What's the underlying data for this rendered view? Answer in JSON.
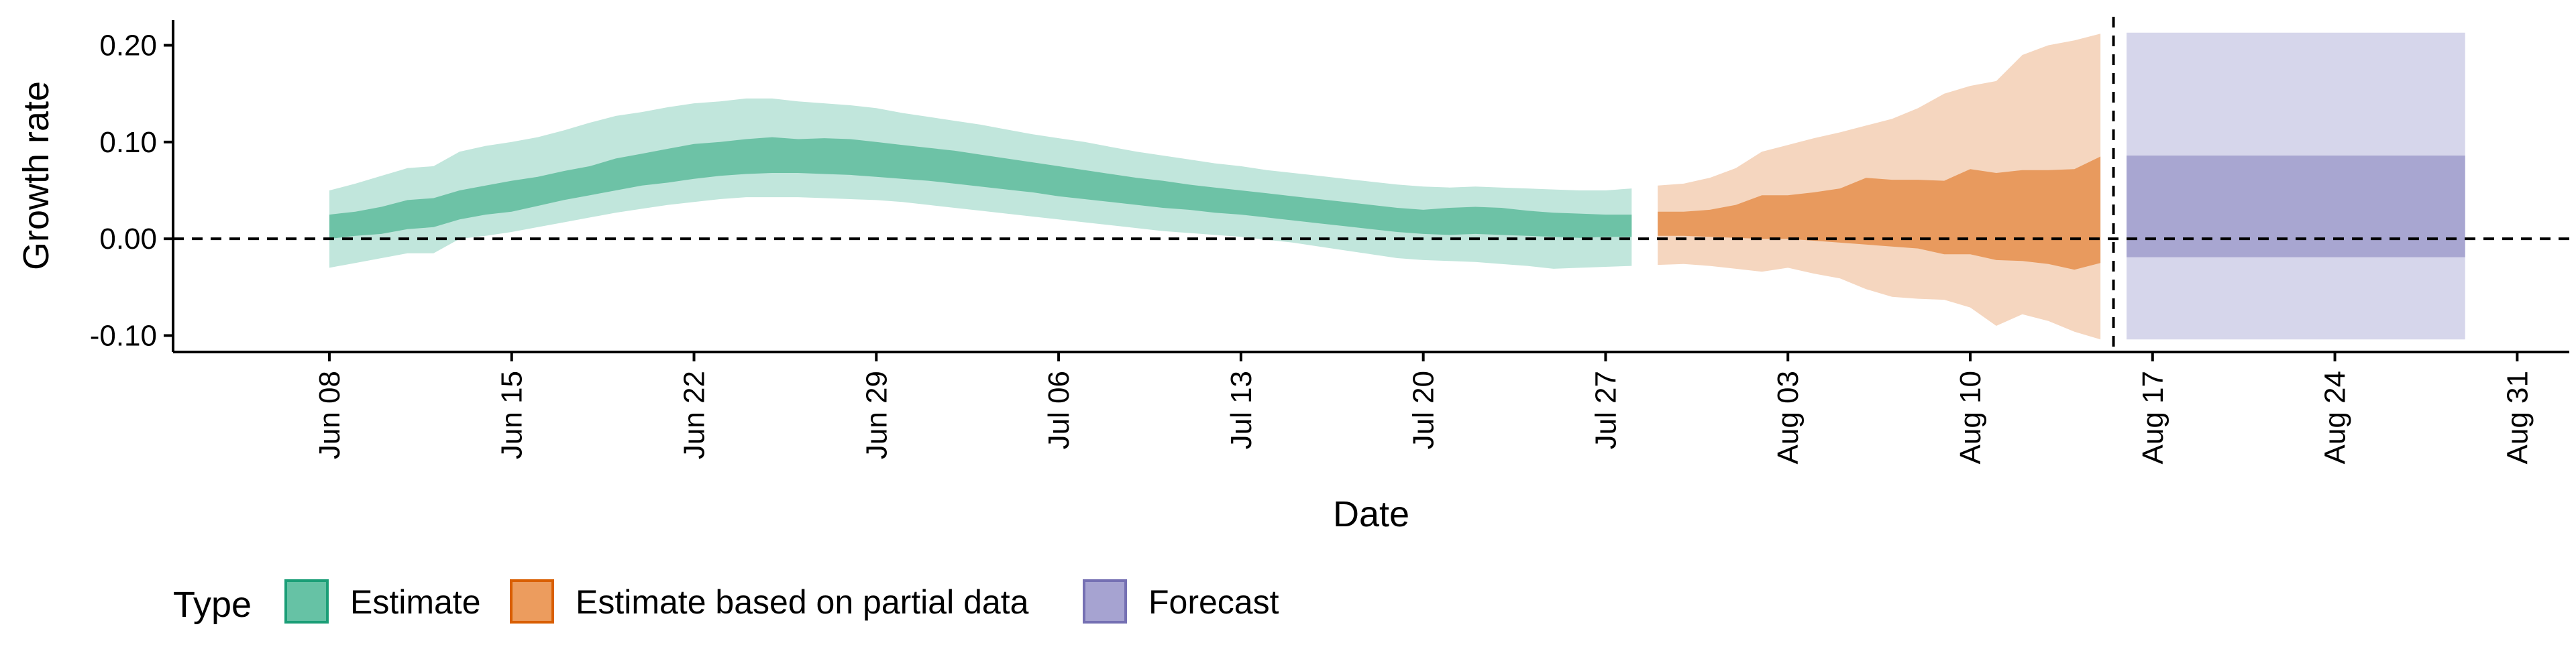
{
  "chart_data": {
    "type": "area",
    "xlabel": "Date",
    "ylabel": "Growth rate",
    "y_ticks": [
      {
        "value": 0.2,
        "label": "0.20"
      },
      {
        "value": 0.1,
        "label": "0.10"
      },
      {
        "value": 0.0,
        "label": "0.00"
      },
      {
        "value": -0.1,
        "label": "-0.10"
      }
    ],
    "ylim": [
      -0.117,
      0.226
    ],
    "xlim": [
      "2020-06-02",
      "2020-09-02"
    ],
    "x_ticks": [
      {
        "date": "2020-06-08",
        "label": "Jun 08"
      },
      {
        "date": "2020-06-15",
        "label": "Jun 15"
      },
      {
        "date": "2020-06-22",
        "label": "Jun 22"
      },
      {
        "date": "2020-06-29",
        "label": "Jun 29"
      },
      {
        "date": "2020-07-06",
        "label": "Jul 06"
      },
      {
        "date": "2020-07-13",
        "label": "Jul 13"
      },
      {
        "date": "2020-07-20",
        "label": "Jul 20"
      },
      {
        "date": "2020-07-27",
        "label": "Jul 27"
      },
      {
        "date": "2020-08-03",
        "label": "Aug 03"
      },
      {
        "date": "2020-08-10",
        "label": "Aug 10"
      },
      {
        "date": "2020-08-17",
        "label": "Aug 17"
      },
      {
        "date": "2020-08-24",
        "label": "Aug 24"
      },
      {
        "date": "2020-08-31",
        "label": "Aug 31"
      }
    ],
    "reference_lines": [
      {
        "axis": "y",
        "value": 0.0,
        "style": "dashed"
      },
      {
        "axis": "x",
        "value": "2020-08-15",
        "style": "dashed"
      }
    ],
    "legend": {
      "title": "Type",
      "placement": "bottom-left",
      "items": [
        {
          "label": "Estimate",
          "fill": "#66c2a5",
          "stroke": "#1b9e77"
        },
        {
          "label": "Estimate based on partial data",
          "fill": "#ec9c5e",
          "stroke": "#d95f02"
        },
        {
          "label": "Forecast",
          "fill": "#a6a3d1",
          "stroke": "#7570b3"
        }
      ]
    },
    "series": [
      {
        "name": "Estimate",
        "color_outer": "#c1e6dc",
        "color_inner": "#6dc2a6",
        "points": [
          {
            "x": "2020-06-08",
            "lo90": -0.03,
            "lo50": 0.0,
            "hi50": 0.025,
            "hi90": 0.05
          },
          {
            "x": "2020-06-09",
            "lo90": -0.025,
            "lo50": 0.003,
            "hi50": 0.028,
            "hi90": 0.057
          },
          {
            "x": "2020-06-10",
            "lo90": -0.02,
            "lo50": 0.005,
            "hi50": 0.033,
            "hi90": 0.065
          },
          {
            "x": "2020-06-11",
            "lo90": -0.015,
            "lo50": 0.01,
            "hi50": 0.04,
            "hi90": 0.073
          },
          {
            "x": "2020-06-12",
            "lo90": -0.015,
            "lo50": 0.012,
            "hi50": 0.042,
            "hi90": 0.075
          },
          {
            "x": "2020-06-13",
            "lo90": 0.0,
            "lo50": 0.02,
            "hi50": 0.05,
            "hi90": 0.09
          },
          {
            "x": "2020-06-14",
            "lo90": 0.003,
            "lo50": 0.025,
            "hi50": 0.055,
            "hi90": 0.096
          },
          {
            "x": "2020-06-15",
            "lo90": 0.007,
            "lo50": 0.028,
            "hi50": 0.06,
            "hi90": 0.1
          },
          {
            "x": "2020-06-16",
            "lo90": 0.012,
            "lo50": 0.034,
            "hi50": 0.064,
            "hi90": 0.105
          },
          {
            "x": "2020-06-17",
            "lo90": 0.017,
            "lo50": 0.04,
            "hi50": 0.07,
            "hi90": 0.112
          },
          {
            "x": "2020-06-18",
            "lo90": 0.022,
            "lo50": 0.045,
            "hi50": 0.075,
            "hi90": 0.12
          },
          {
            "x": "2020-06-19",
            "lo90": 0.027,
            "lo50": 0.05,
            "hi50": 0.083,
            "hi90": 0.127
          },
          {
            "x": "2020-06-20",
            "lo90": 0.031,
            "lo50": 0.055,
            "hi50": 0.088,
            "hi90": 0.131
          },
          {
            "x": "2020-06-21",
            "lo90": 0.035,
            "lo50": 0.058,
            "hi50": 0.093,
            "hi90": 0.136
          },
          {
            "x": "2020-06-22",
            "lo90": 0.038,
            "lo50": 0.062,
            "hi50": 0.098,
            "hi90": 0.14
          },
          {
            "x": "2020-06-23",
            "lo90": 0.041,
            "lo50": 0.065,
            "hi50": 0.1,
            "hi90": 0.142
          },
          {
            "x": "2020-06-24",
            "lo90": 0.043,
            "lo50": 0.067,
            "hi50": 0.103,
            "hi90": 0.145
          },
          {
            "x": "2020-06-25",
            "lo90": 0.043,
            "lo50": 0.068,
            "hi50": 0.105,
            "hi90": 0.145
          },
          {
            "x": "2020-06-26",
            "lo90": 0.043,
            "lo50": 0.068,
            "hi50": 0.103,
            "hi90": 0.142
          },
          {
            "x": "2020-06-27",
            "lo90": 0.042,
            "lo50": 0.067,
            "hi50": 0.104,
            "hi90": 0.14
          },
          {
            "x": "2020-06-28",
            "lo90": 0.041,
            "lo50": 0.066,
            "hi50": 0.103,
            "hi90": 0.138
          },
          {
            "x": "2020-06-29",
            "lo90": 0.04,
            "lo50": 0.064,
            "hi50": 0.1,
            "hi90": 0.135
          },
          {
            "x": "2020-06-30",
            "lo90": 0.038,
            "lo50": 0.062,
            "hi50": 0.097,
            "hi90": 0.13
          },
          {
            "x": "2020-07-01",
            "lo90": 0.035,
            "lo50": 0.06,
            "hi50": 0.094,
            "hi90": 0.126
          },
          {
            "x": "2020-07-02",
            "lo90": 0.032,
            "lo50": 0.057,
            "hi50": 0.091,
            "hi90": 0.122
          },
          {
            "x": "2020-07-03",
            "lo90": 0.029,
            "lo50": 0.054,
            "hi50": 0.087,
            "hi90": 0.118
          },
          {
            "x": "2020-07-04",
            "lo90": 0.026,
            "lo50": 0.051,
            "hi50": 0.083,
            "hi90": 0.113
          },
          {
            "x": "2020-07-05",
            "lo90": 0.023,
            "lo50": 0.048,
            "hi50": 0.079,
            "hi90": 0.108
          },
          {
            "x": "2020-07-06",
            "lo90": 0.02,
            "lo50": 0.044,
            "hi50": 0.075,
            "hi90": 0.104
          },
          {
            "x": "2020-07-07",
            "lo90": 0.017,
            "lo50": 0.041,
            "hi50": 0.071,
            "hi90": 0.1
          },
          {
            "x": "2020-07-08",
            "lo90": 0.014,
            "lo50": 0.038,
            "hi50": 0.067,
            "hi90": 0.095
          },
          {
            "x": "2020-07-09",
            "lo90": 0.011,
            "lo50": 0.035,
            "hi50": 0.063,
            "hi90": 0.09
          },
          {
            "x": "2020-07-10",
            "lo90": 0.008,
            "lo50": 0.032,
            "hi50": 0.06,
            "hi90": 0.086
          },
          {
            "x": "2020-07-11",
            "lo90": 0.006,
            "lo50": 0.03,
            "hi50": 0.056,
            "hi90": 0.082
          },
          {
            "x": "2020-07-12",
            "lo90": 0.004,
            "lo50": 0.027,
            "hi50": 0.053,
            "hi90": 0.078
          },
          {
            "x": "2020-07-13",
            "lo90": 0.002,
            "lo50": 0.025,
            "hi50": 0.05,
            "hi90": 0.075
          },
          {
            "x": "2020-07-14",
            "lo90": -0.001,
            "lo50": 0.022,
            "hi50": 0.047,
            "hi90": 0.071
          },
          {
            "x": "2020-07-15",
            "lo90": -0.004,
            "lo50": 0.019,
            "hi50": 0.044,
            "hi90": 0.068
          },
          {
            "x": "2020-07-16",
            "lo90": -0.008,
            "lo50": 0.016,
            "hi50": 0.041,
            "hi90": 0.065
          },
          {
            "x": "2020-07-17",
            "lo90": -0.012,
            "lo50": 0.013,
            "hi50": 0.038,
            "hi90": 0.062
          },
          {
            "x": "2020-07-18",
            "lo90": -0.016,
            "lo50": 0.01,
            "hi50": 0.035,
            "hi90": 0.059
          },
          {
            "x": "2020-07-19",
            "lo90": -0.02,
            "lo50": 0.007,
            "hi50": 0.032,
            "hi90": 0.056
          },
          {
            "x": "2020-07-20",
            "lo90": -0.022,
            "lo50": 0.005,
            "hi50": 0.03,
            "hi90": 0.054
          },
          {
            "x": "2020-07-21",
            "lo90": -0.023,
            "lo50": 0.004,
            "hi50": 0.032,
            "hi90": 0.053
          },
          {
            "x": "2020-07-22",
            "lo90": -0.024,
            "lo50": 0.005,
            "hi50": 0.033,
            "hi90": 0.054
          },
          {
            "x": "2020-07-23",
            "lo90": -0.026,
            "lo50": 0.004,
            "hi50": 0.032,
            "hi90": 0.053
          },
          {
            "x": "2020-07-24",
            "lo90": -0.028,
            "lo50": 0.003,
            "hi50": 0.029,
            "hi90": 0.052
          },
          {
            "x": "2020-07-25",
            "lo90": -0.031,
            "lo50": 0.002,
            "hi50": 0.027,
            "hi90": 0.051
          },
          {
            "x": "2020-07-26",
            "lo90": -0.03,
            "lo50": 0.001,
            "hi50": 0.026,
            "hi90": 0.05
          },
          {
            "x": "2020-07-27",
            "lo90": -0.029,
            "lo50": 0.002,
            "hi50": 0.025,
            "hi90": 0.05
          },
          {
            "x": "2020-07-28",
            "lo90": -0.028,
            "lo50": 0.002,
            "hi50": 0.025,
            "hi90": 0.052
          }
        ]
      },
      {
        "name": "Estimate based on partial data",
        "color_outer": "#f5d6bf",
        "color_inner": "#e89a5e",
        "points": [
          {
            "x": "2020-07-29",
            "lo90": -0.027,
            "lo50": 0.003,
            "hi50": 0.028,
            "hi90": 0.055
          },
          {
            "x": "2020-07-30",
            "lo90": -0.026,
            "lo50": 0.003,
            "hi50": 0.028,
            "hi90": 0.057
          },
          {
            "x": "2020-07-31",
            "lo90": -0.028,
            "lo50": 0.002,
            "hi50": 0.03,
            "hi90": 0.063
          },
          {
            "x": "2020-08-01",
            "lo90": -0.031,
            "lo50": 0.001,
            "hi50": 0.035,
            "hi90": 0.073
          },
          {
            "x": "2020-08-02",
            "lo90": -0.034,
            "lo50": 0.0,
            "hi50": 0.045,
            "hi90": 0.09
          },
          {
            "x": "2020-08-03",
            "lo90": -0.03,
            "lo50": 0.0,
            "hi50": 0.045,
            "hi90": 0.097
          },
          {
            "x": "2020-08-04",
            "lo90": -0.036,
            "lo50": -0.002,
            "hi50": 0.048,
            "hi90": 0.104
          },
          {
            "x": "2020-08-05",
            "lo90": -0.041,
            "lo50": -0.004,
            "hi50": 0.052,
            "hi90": 0.11
          },
          {
            "x": "2020-08-06",
            "lo90": -0.052,
            "lo50": -0.006,
            "hi50": 0.063,
            "hi90": 0.117
          },
          {
            "x": "2020-08-07",
            "lo90": -0.06,
            "lo50": -0.008,
            "hi50": 0.061,
            "hi90": 0.124
          },
          {
            "x": "2020-08-08",
            "lo90": -0.062,
            "lo50": -0.01,
            "hi50": 0.061,
            "hi90": 0.135
          },
          {
            "x": "2020-08-09",
            "lo90": -0.063,
            "lo50": -0.016,
            "hi50": 0.06,
            "hi90": 0.15
          },
          {
            "x": "2020-08-10",
            "lo90": -0.071,
            "lo50": -0.016,
            "hi50": 0.072,
            "hi90": 0.158
          },
          {
            "x": "2020-08-11",
            "lo90": -0.09,
            "lo50": -0.022,
            "hi50": 0.068,
            "hi90": 0.163
          },
          {
            "x": "2020-08-12",
            "lo90": -0.078,
            "lo50": -0.023,
            "hi50": 0.071,
            "hi90": 0.19
          },
          {
            "x": "2020-08-13",
            "lo90": -0.085,
            "lo50": -0.026,
            "hi50": 0.071,
            "hi90": 0.2
          },
          {
            "x": "2020-08-14",
            "lo90": -0.096,
            "lo50": -0.032,
            "hi50": 0.072,
            "hi90": 0.205
          },
          {
            "x": "2020-08-15",
            "lo90": -0.104,
            "lo50": -0.025,
            "hi50": 0.085,
            "hi90": 0.212
          }
        ]
      },
      {
        "name": "Forecast",
        "color_outer": "#d6d6eb",
        "color_inner": "#a8a6d1",
        "points": [
          {
            "x": "2020-08-16",
            "lo90": -0.104,
            "lo50": -0.019,
            "hi50": 0.086,
            "hi90": 0.213
          },
          {
            "x": "2020-08-29",
            "lo90": -0.104,
            "lo50": -0.019,
            "hi50": 0.086,
            "hi90": 0.213
          }
        ]
      }
    ]
  }
}
